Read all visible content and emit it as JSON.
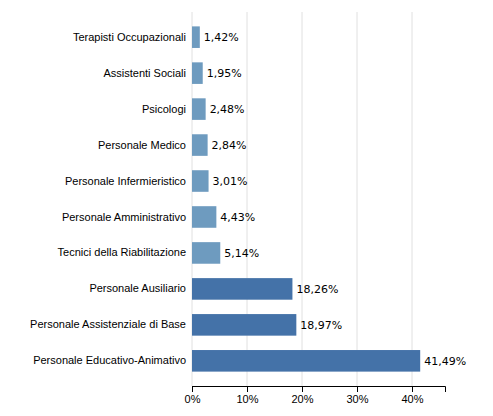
{
  "chart_data": {
    "type": "bar",
    "orientation": "horizontal",
    "categories": [
      "Personale Educativo-Animativo",
      "Personale Assistenziale di Base",
      "Personale Ausiliario",
      "Tecnici della Riabilitazione",
      "Personale Amministrativo",
      "Personale Infermieristico",
      "Personale Medico",
      "Psicologi",
      "Assistenti Sociali",
      "Terapisti Occupazionali"
    ],
    "values": [
      41.49,
      18.97,
      18.26,
      5.14,
      4.43,
      3.01,
      2.84,
      2.48,
      1.95,
      1.42
    ],
    "value_labels": [
      "41,49%",
      "18,97%",
      "18,26%",
      "5,14%",
      "4,43%",
      "3,01%",
      "2,84%",
      "2,48%",
      "1,95%",
      "1,42%"
    ],
    "data_labels": true,
    "colors": [
      "#4472a8",
      "#4472a8",
      "#4472a8",
      "#6e9bbf",
      "#6e9bbf",
      "#6e9bbf",
      "#6e9bbf",
      "#6e9bbf",
      "#6e9bbf",
      "#6e9bbf"
    ],
    "xlim": [
      0,
      46
    ],
    "xticks": [
      {
        "value": 0,
        "label": "0%"
      },
      {
        "value": 10,
        "label": "10%"
      },
      {
        "value": 20,
        "label": "20%"
      },
      {
        "value": 30,
        "label": "30%"
      },
      {
        "value": 40,
        "label": "40%"
      }
    ],
    "grid": true
  }
}
